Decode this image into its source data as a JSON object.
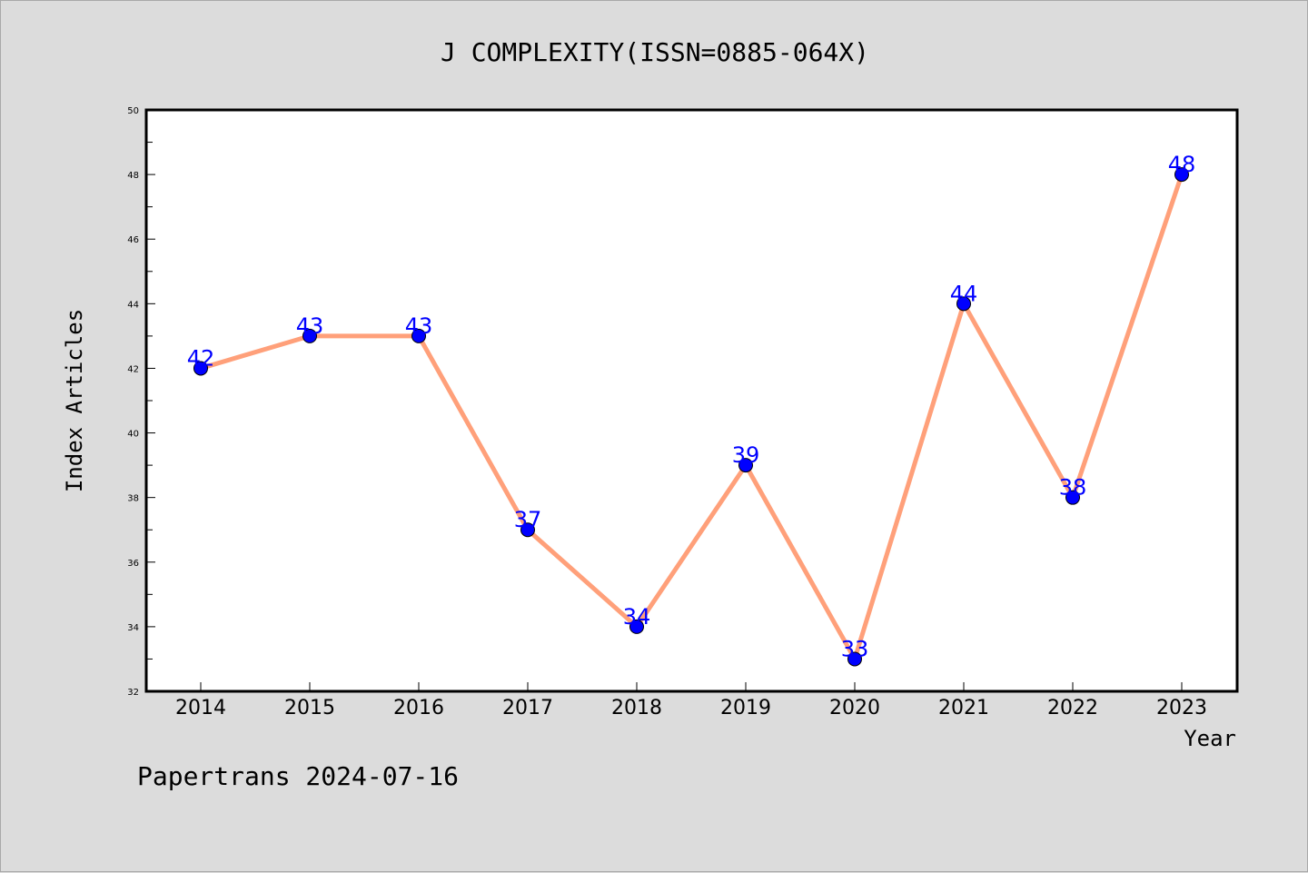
{
  "chart_data": {
    "type": "line",
    "title": "J COMPLEXITY(ISSN=0885-064X)",
    "xlabel": "Year",
    "ylabel": "Index Articles",
    "categories": [
      "2014",
      "2015",
      "2016",
      "2017",
      "2018",
      "2019",
      "2020",
      "2021",
      "2022",
      "2023"
    ],
    "values": [
      42,
      43,
      43,
      37,
      34,
      39,
      33,
      44,
      38,
      48
    ],
    "data_labels": [
      "42",
      "43",
      "43",
      "37",
      "34",
      "39",
      "33",
      "44",
      "38",
      "48"
    ],
    "ylim": [
      32,
      50
    ],
    "yticks": [
      32,
      34,
      36,
      38,
      40,
      42,
      44,
      46,
      48,
      50
    ],
    "ytick_labels": [
      "32",
      "34",
      "36",
      "38",
      "40",
      "42",
      "44",
      "46",
      "48",
      "50"
    ],
    "grid": false,
    "line_color": "#ffa07a",
    "marker_color": "#0000ff",
    "label_color": "#0000ff"
  },
  "footer": "Papertrans 2024-07-16"
}
